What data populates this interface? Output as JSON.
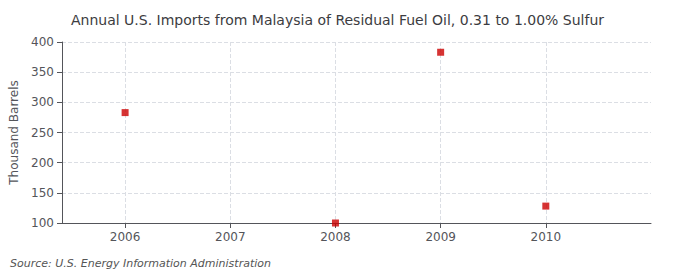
{
  "chart_data": {
    "type": "scatter",
    "title": "Annual U.S. Imports from Malaysia of Residual Fuel Oil, 0.31 to 1.00% Sulfur",
    "ylabel": "Thousand Barrels",
    "annotation": "Source: U.S. Energy Information Administration",
    "x": [
      2006,
      2008,
      2009,
      2010
    ],
    "values": [
      283,
      100,
      383,
      128
    ],
    "color": "#cc0000",
    "marker": "square",
    "xlim": [
      2005.4,
      2011.0
    ],
    "xticks": [
      2006,
      2007,
      2008,
      2009,
      2010
    ],
    "ylim": [
      100,
      400
    ],
    "yticks": [
      100,
      150,
      200,
      250,
      300,
      350,
      400
    ],
    "grid": true
  }
}
